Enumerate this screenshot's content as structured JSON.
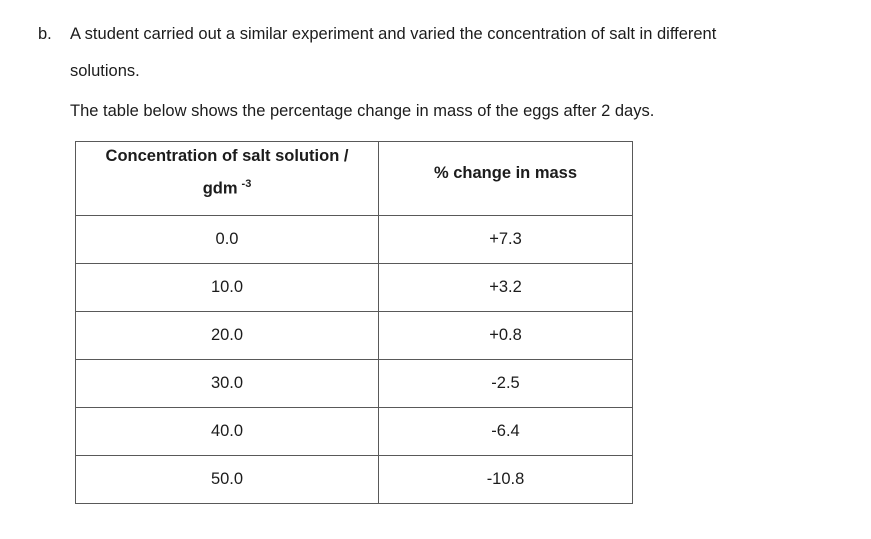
{
  "question": {
    "label": "b.",
    "text_line1": "A student carried out a similar experiment and varied the concentration of salt in different",
    "text_line2": "solutions.",
    "intro": "The table below shows the percentage change in mass of the eggs after 2 days."
  },
  "table": {
    "headers": {
      "col1_line1": "Concentration of salt solution /",
      "col1_unit": "gdm",
      "col1_sup": "-3",
      "col2": "% change in mass"
    },
    "rows": [
      {
        "concentration": "0.0",
        "change": "+7.3"
      },
      {
        "concentration": "10.0",
        "change": "+3.2"
      },
      {
        "concentration": "20.0",
        "change": "+0.8"
      },
      {
        "concentration": "30.0",
        "change": "-2.5"
      },
      {
        "concentration": "40.0",
        "change": "-6.4"
      },
      {
        "concentration": "50.0",
        "change": "-10.8"
      }
    ]
  },
  "chart_data": {
    "type": "table",
    "title": "Percentage change in mass of eggs after 2 days",
    "xlabel": "Concentration of salt solution / gdm -3",
    "ylabel": "% change in mass",
    "x": [
      0.0,
      10.0,
      20.0,
      30.0,
      40.0,
      50.0
    ],
    "y": [
      7.3,
      3.2,
      0.8,
      -2.5,
      -6.4,
      -10.8
    ]
  },
  "colors": {
    "text": "#1c1c1c",
    "table_border": "#595959",
    "background": "#ffffff"
  }
}
